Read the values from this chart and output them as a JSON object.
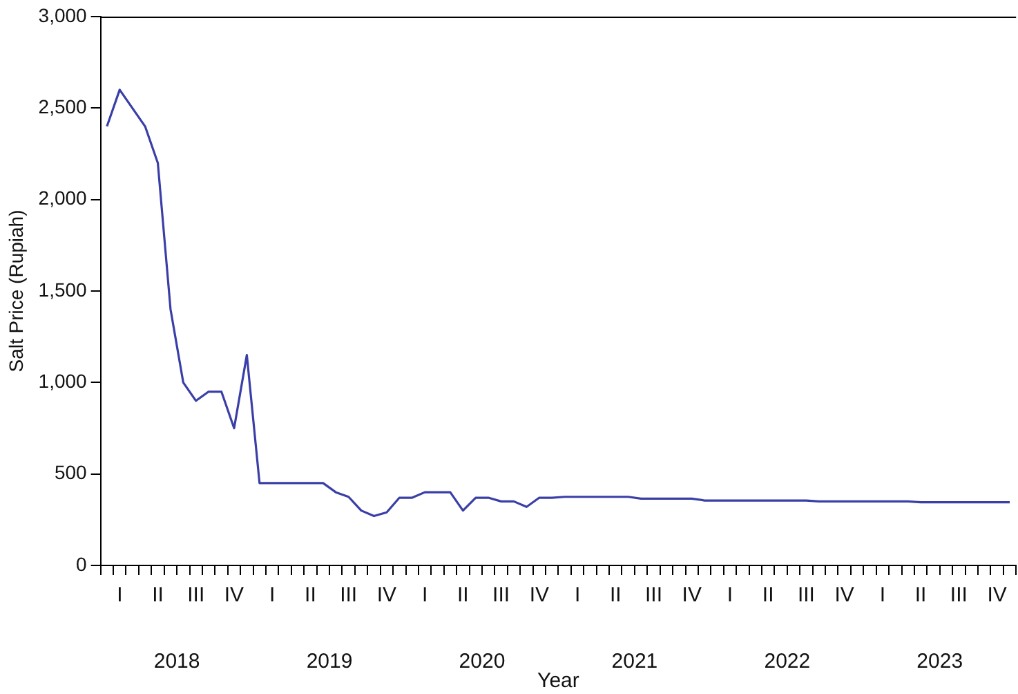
{
  "chart_data": {
    "type": "line",
    "xlabel": "Year",
    "ylabel": "Salt Price (Rupiah)",
    "categories": [
      null,
      "I",
      null,
      null,
      "II",
      null,
      null,
      "III",
      null,
      null,
      "IV",
      null,
      null,
      "I",
      null,
      null,
      "II",
      null,
      null,
      "III",
      null,
      null,
      "IV",
      null,
      null,
      "I",
      null,
      null,
      "II",
      null,
      null,
      "III",
      null,
      null,
      "IV",
      null,
      null,
      "I",
      null,
      null,
      "II",
      null,
      null,
      "III",
      null,
      null,
      "IV",
      null,
      null,
      "I",
      null,
      null,
      "II",
      null,
      null,
      "III",
      null,
      null,
      "IV",
      null,
      null,
      "I",
      null,
      null,
      "II",
      null,
      null,
      "III",
      null,
      null,
      "IV",
      null
    ],
    "series": [
      {
        "color": "#3a3fa8",
        "values": [
          2400,
          2600,
          2500,
          2400,
          2200,
          1400,
          1000,
          900,
          950,
          950,
          750,
          1150,
          450,
          450,
          450,
          450,
          450,
          450,
          400,
          375,
          300,
          270,
          290,
          370,
          370,
          400,
          400,
          400,
          300,
          370,
          370,
          350,
          350,
          320,
          370,
          370,
          375,
          375,
          375,
          375,
          375,
          375,
          365,
          365,
          365,
          365,
          365,
          355,
          355,
          355,
          355,
          355,
          355,
          355,
          355,
          355,
          350,
          350,
          350,
          350,
          350,
          350,
          350,
          350,
          345,
          345,
          345,
          345,
          345,
          345,
          345,
          345
        ]
      }
    ],
    "ylim": [
      0,
      3000
    ],
    "yticks": [
      {
        "value": 0,
        "label": "0"
      },
      {
        "value": 500,
        "label": "500"
      },
      {
        "value": 1000,
        "label": "1,000"
      },
      {
        "value": 1500,
        "label": "1,500"
      },
      {
        "value": 2000,
        "label": "2,000"
      },
      {
        "value": 2500,
        "label": "2,500"
      },
      {
        "value": 3000,
        "label": "3,000"
      }
    ],
    "annotations": [
      "2018",
      "2019",
      "2020",
      "2021",
      "2022",
      "2023"
    ],
    "grid": false,
    "legend": false
  }
}
